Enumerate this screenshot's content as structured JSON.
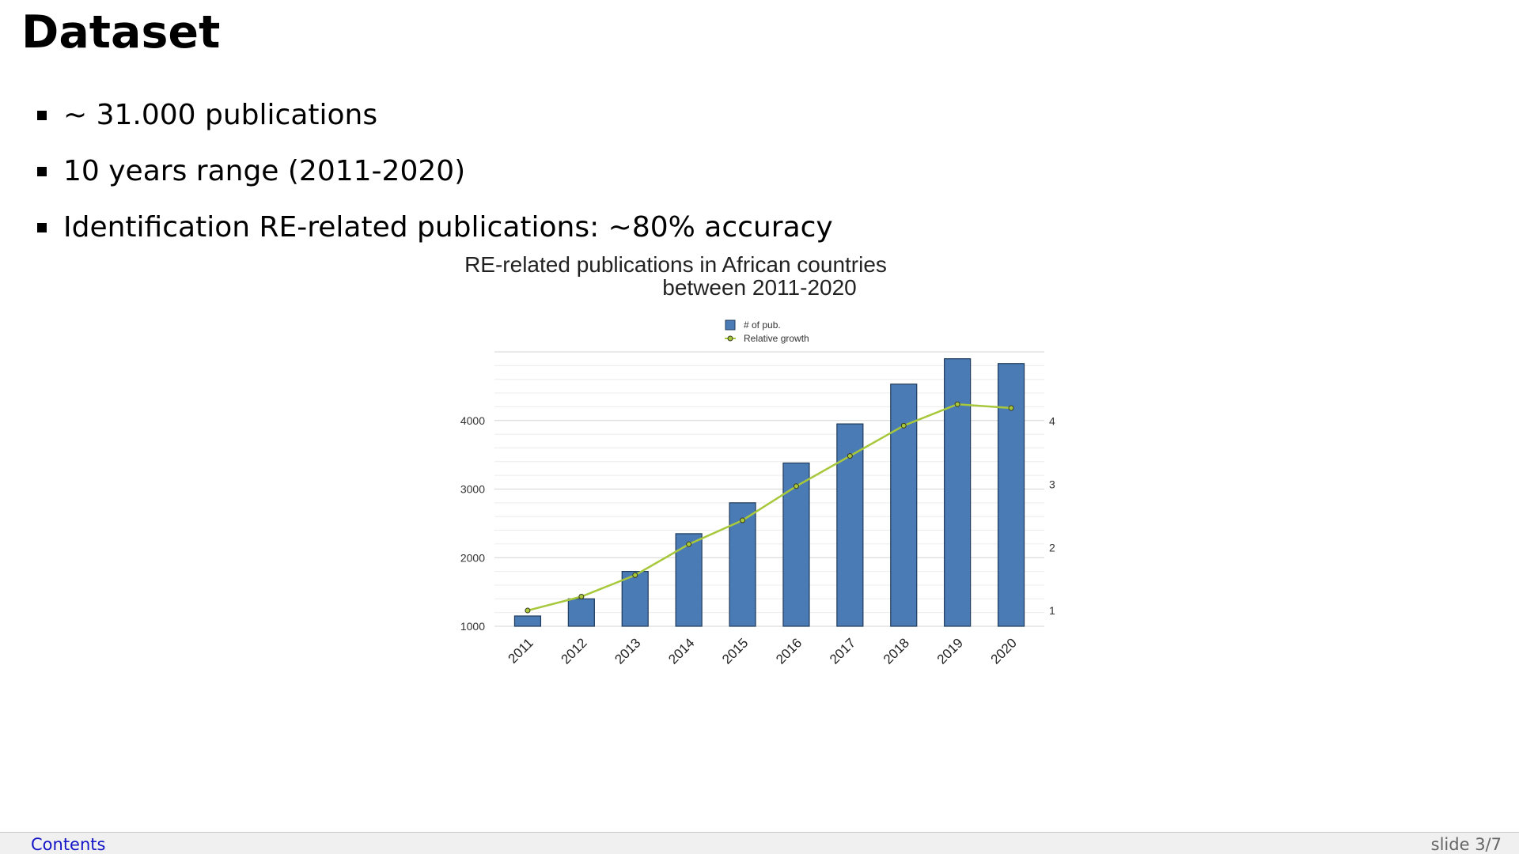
{
  "slide": {
    "title": "Dataset",
    "bullets": [
      "~ 31.000 publications",
      "10 years range (2011-2020)",
      "Identification RE-related publications: ~80% accuracy"
    ]
  },
  "chart_data": {
    "type": "bar",
    "title_lines": [
      "RE-related publications in African countries",
      "between 2011-2020"
    ],
    "categories": [
      "2011",
      "2012",
      "2013",
      "2014",
      "2015",
      "2016",
      "2017",
      "2018",
      "2019",
      "2020"
    ],
    "series": [
      {
        "name": "# of pub.",
        "type": "bar",
        "axis": "left",
        "color": "#4a7bb5",
        "values": [
          1150,
          1400,
          1800,
          2350,
          2800,
          3380,
          3950,
          4530,
          4900,
          4830
        ]
      },
      {
        "name": "Relative growth",
        "type": "line",
        "axis": "right",
        "color": "#a8c83c",
        "values": [
          1.0,
          1.22,
          1.56,
          2.05,
          2.43,
          2.97,
          3.45,
          3.93,
          4.27,
          4.21
        ]
      }
    ],
    "y_left": {
      "ticks": [
        1000,
        2000,
        3000,
        4000
      ],
      "range": [
        1000,
        5000
      ]
    },
    "y_right": {
      "ticks": [
        1,
        2,
        3,
        4
      ],
      "range": [
        0.75,
        5.1
      ]
    },
    "legend_position": "top-center",
    "grid": true
  },
  "footer": {
    "contents_label": "Contents",
    "slide_label": "slide 3/7"
  }
}
